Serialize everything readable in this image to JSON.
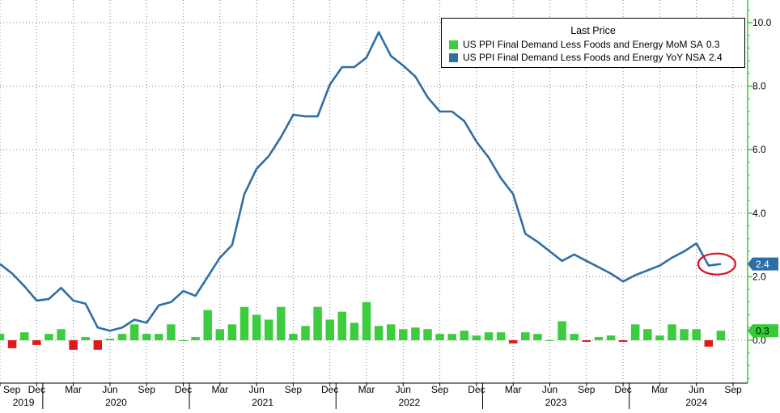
{
  "colors": {
    "line": "#2f6ea5",
    "bar_positive": "#3dcc3d",
    "bar_negative": "#e01919",
    "axis": "#33cc33",
    "marker_ring": "#d4162a",
    "grid": "#7f7f7f"
  },
  "legend": {
    "title": "Last Price",
    "placement": "top-right",
    "entries": [
      {
        "label": "US PPI Final Demand Less Foods and Energy MoM SA",
        "value": "0.3",
        "color": "#3dcc3d"
      },
      {
        "label": "US PPI Final Demand Less Foods and Energy YoY NSA",
        "value": "2.4",
        "color": "#2f6ea5"
      }
    ]
  },
  "chart_data": {
    "type": "bar+line",
    "ylim": [
      -1.0,
      10.2
    ],
    "grid": true,
    "y_ticks": [
      "0.0",
      "2.0",
      "4.0",
      "6.0",
      "8.0",
      "10.0"
    ],
    "y_tick_values": [
      0,
      2,
      4,
      6,
      8,
      10
    ],
    "x_month_ticks": [
      {
        "i": 0,
        "label": "Sep"
      },
      {
        "i": 3,
        "label": "Dec"
      },
      {
        "i": 6,
        "label": "Mar"
      },
      {
        "i": 9,
        "label": "Jun"
      },
      {
        "i": 12,
        "label": "Sep"
      },
      {
        "i": 15,
        "label": "Dec"
      },
      {
        "i": 18,
        "label": "Mar"
      },
      {
        "i": 21,
        "label": "Jun"
      },
      {
        "i": 24,
        "label": "Sep"
      },
      {
        "i": 27,
        "label": "Dec"
      },
      {
        "i": 30,
        "label": "Mar"
      },
      {
        "i": 33,
        "label": "Jun"
      },
      {
        "i": 36,
        "label": "Sep"
      },
      {
        "i": 39,
        "label": "Dec"
      },
      {
        "i": 42,
        "label": "Mar"
      },
      {
        "i": 45,
        "label": "Jun"
      },
      {
        "i": 48,
        "label": "Sep"
      },
      {
        "i": 51,
        "label": "Dec"
      },
      {
        "i": 54,
        "label": "Mar"
      },
      {
        "i": 57,
        "label": "Jun"
      },
      {
        "i": 60,
        "label": "Sep"
      }
    ],
    "year_labels": [
      {
        "i": 1,
        "label": "2019"
      },
      {
        "i": 9.5,
        "label": "2020"
      },
      {
        "i": 21.5,
        "label": "2021"
      },
      {
        "i": 33.5,
        "label": "2022"
      },
      {
        "i": 45.5,
        "label": "2023"
      },
      {
        "i": 57,
        "label": "2024"
      }
    ],
    "year_separators": [
      3.5,
      15.5,
      27.5,
      39.5,
      51.5
    ],
    "series": [
      {
        "name": "US PPI Final Demand Less Foods and Energy YoY NSA",
        "type": "line",
        "x_start": "2019-08",
        "values": [
          2.4,
          2.1,
          1.7,
          1.25,
          1.3,
          1.65,
          1.25,
          1.15,
          0.4,
          0.3,
          0.4,
          0.65,
          0.55,
          1.1,
          1.2,
          1.55,
          1.4,
          2.0,
          2.6,
          3.0,
          4.6,
          5.4,
          5.8,
          6.4,
          7.1,
          7.05,
          7.05,
          8.05,
          8.6,
          8.6,
          8.9,
          9.7,
          8.95,
          8.65,
          8.3,
          7.65,
          7.2,
          7.2,
          6.9,
          6.25,
          5.75,
          5.1,
          4.6,
          3.35,
          3.1,
          2.8,
          2.5,
          2.7,
          2.5,
          2.3,
          2.1,
          1.85,
          2.05,
          2.2,
          2.35,
          2.6,
          2.8,
          3.05,
          2.35,
          2.4
        ]
      },
      {
        "name": "US PPI Final Demand Less Foods and Energy MoM SA",
        "type": "bar",
        "x_start": "2019-08",
        "values": [
          0.2,
          -0.25,
          0.25,
          -0.15,
          0.2,
          0.35,
          -0.3,
          0.1,
          -0.3,
          0.05,
          0.2,
          0.5,
          0.2,
          0.2,
          0.5,
          0.0,
          0.1,
          0.95,
          0.35,
          0.5,
          1.05,
          0.8,
          0.65,
          1.05,
          0.2,
          0.45,
          1.05,
          0.65,
          0.9,
          0.55,
          1.2,
          0.45,
          0.5,
          0.35,
          0.4,
          0.35,
          0.2,
          0.2,
          0.3,
          0.15,
          0.25,
          0.25,
          -0.1,
          0.25,
          0.2,
          0.0,
          0.6,
          0.2,
          -0.05,
          0.1,
          0.15,
          -0.05,
          0.5,
          0.35,
          0.15,
          0.5,
          0.35,
          0.35,
          -0.2,
          0.3
        ]
      }
    ],
    "last_values": [
      {
        "label": "2.4",
        "value": 2.4,
        "color": "#2f6ea5",
        "text_color": "#ffffff"
      },
      {
        "label": "0.3",
        "value": 0.3,
        "color": "#33cc33",
        "text_color": "#000000"
      }
    ]
  }
}
